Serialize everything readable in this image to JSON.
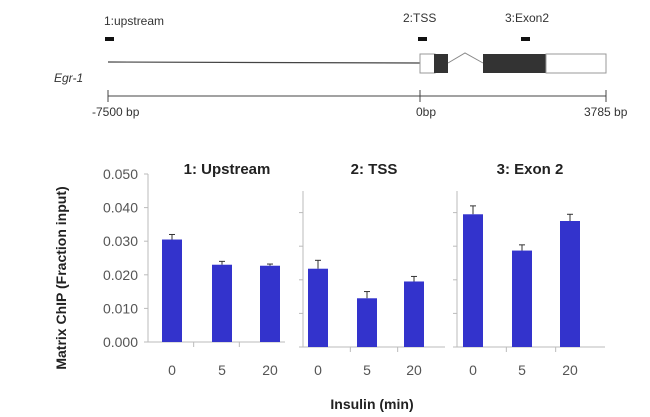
{
  "gene_map": {
    "gene_name": "Egr-1",
    "probes": [
      "1:upstream",
      "2:TSS",
      "3:Exon2"
    ],
    "scale_labels": [
      "-7500 bp",
      "0bp",
      "3785 bp"
    ]
  },
  "chart_data": {
    "type": "bar",
    "ylabel": "Matrix ChIP (Fraction input)",
    "xlabel": "Insulin  (min)",
    "ylim": [
      0,
      0.05
    ],
    "yticks": [
      "0.000",
      "0.010",
      "0.020",
      "0.030",
      "0.040",
      "0.050"
    ],
    "categories": [
      "0",
      "5",
      "20"
    ],
    "bar_color": "#3333cc",
    "grid": false,
    "panels": [
      {
        "title": "1: Upstream",
        "values": [
          0.0305,
          0.023,
          0.0227
        ],
        "errors": [
          0.0015,
          0.001,
          0.0005
        ]
      },
      {
        "title": "2: TSS",
        "values": [
          0.0233,
          0.0145,
          0.0195
        ],
        "errors": [
          0.0025,
          0.002,
          0.0015
        ]
      },
      {
        "title": "3: Exon 2",
        "values": [
          0.0395,
          0.0287,
          0.0375
        ],
        "errors": [
          0.0025,
          0.0017,
          0.002
        ]
      }
    ]
  }
}
